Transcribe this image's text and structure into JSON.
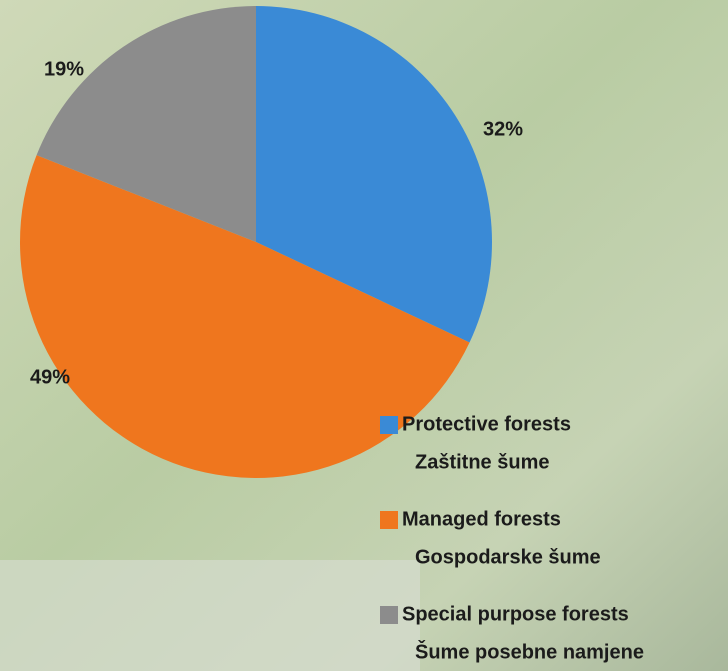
{
  "chart_data": {
    "type": "pie",
    "categories": [
      [
        "Protective forests",
        "Zaštitne šume"
      ],
      [
        "Managed forests",
        "Gospodarske šume"
      ],
      [
        "Special purpose forests",
        "Šume posebne namjene"
      ]
    ],
    "values": [
      32,
      49,
      19
    ],
    "value_labels": [
      "32%",
      "49%",
      "19%"
    ],
    "colors": [
      "#3a8ad6",
      "#ef761e",
      "#8c8c8c"
    ],
    "legend": "bottom-right"
  }
}
